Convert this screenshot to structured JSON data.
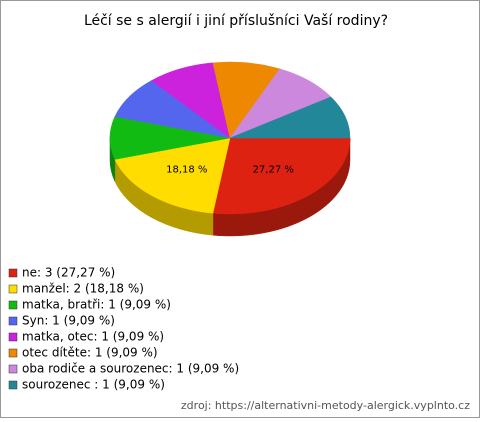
{
  "chart_data": {
    "type": "pie",
    "title": "Léčí se s alergií i jiní příslušníci Vaší rodiny?",
    "categories": [
      "ne: 3 (27,27 %)",
      "manžel: 2 (18,18 %)",
      "matka, bratři: 1 (9,09 %)",
      "Syn: 1 (9,09 %)",
      "matka, otec: 1 (9,09 %)",
      "otec dítěte: 1 (9,09 %)",
      "oba rodiče a sourozenec: 1 (9,09 %)",
      "sourozenec : 1 (9,09 %)"
    ],
    "values": [
      27.27,
      18.18,
      9.09,
      9.09,
      9.09,
      9.09,
      9.09,
      9.09
    ],
    "value_labels": [
      "27,27 %",
      "18,18 %",
      null,
      null,
      null,
      null,
      null,
      null
    ],
    "colors": [
      "#dd2211",
      "#ffdd00",
      "#11bb11",
      "#5566ee",
      "#cc22dd",
      "#ee8800",
      "#cc88dd",
      "#228899"
    ],
    "source": "zdroj: https://alternativni-metody-alergick.vyplnto.cz"
  }
}
